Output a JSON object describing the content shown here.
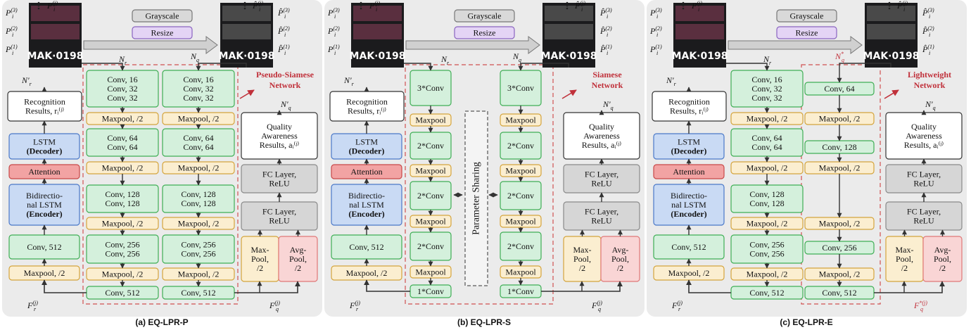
{
  "panels": [
    {
      "caption": "(a)  EQ-LPR-P",
      "plate": "MAK·0198",
      "network": [
        "Pseudo-Siamese",
        "Network"
      ],
      "labels": [
        {
          "base": "P",
          "sub": "i",
          "sup": "(3)"
        },
        {
          "base": "P",
          "sub": "i",
          "sup": "(2)"
        },
        {
          "base": "P",
          "sub": "i",
          "sup": "(1)"
        },
        {
          "base": "P",
          "sub": "i",
          "sup": "(j)"
        },
        {
          "base": "P̂",
          "sub": "i",
          "sup": "(j)"
        },
        {
          "base": "P̂",
          "sub": "i",
          "sup": "(3)"
        },
        {
          "base": "P̂",
          "sub": "i",
          "sup": "(2)"
        },
        {
          "base": "P̂",
          "sub": "i",
          "sup": "(1)"
        },
        {
          "base": "N",
          "sub": "r"
        },
        {
          "base": "N",
          "sub": "q"
        },
        {
          "base": "N′",
          "sub": "r"
        },
        {
          "base": "N′",
          "sub": "q"
        },
        {
          "base": "F",
          "sub": "r",
          "sup": "(j)"
        },
        {
          "base": "F",
          "sub": "q",
          "sup": "(j)"
        }
      ],
      "boxes": [
        [
          "Grayscale"
        ],
        [
          "Resize"
        ],
        [
          "Recognition",
          "Results, rᵢ⁽ʲ⁾"
        ],
        [
          "LSTM",
          "(Decoder)"
        ],
        [
          "Attention"
        ],
        [
          "Bidirectio-",
          "nal LSTM",
          "(Encoder)"
        ],
        [
          "Conv, 512"
        ],
        [
          "Maxpool, /2"
        ],
        [
          "Quality",
          "Awareness",
          "Results, aᵢ⁽ʲ⁾"
        ],
        [
          "FC Layer,",
          "ReLU"
        ],
        [
          "FC Layer,",
          "ReLU"
        ],
        [
          "Max-",
          "Pool,",
          "/2"
        ],
        [
          "Avg-",
          "Pool,",
          "/2"
        ]
      ],
      "columns": [
        [
          [
            "Conv, 16",
            "Conv, 32",
            "Conv, 32"
          ],
          [
            "Maxpool, /2"
          ],
          [
            "Conv, 64",
            "Conv, 64"
          ],
          [
            "Maxpool, /2"
          ],
          [
            "Conv, 128",
            "Conv, 128"
          ],
          [
            "Maxpool, /2"
          ],
          [
            "Conv, 256",
            "Conv, 256"
          ],
          [
            "Maxpool, /2"
          ],
          [
            "Conv, 512"
          ]
        ],
        [
          [
            "Conv, 16",
            "Conv, 32",
            "Conv, 32"
          ],
          [
            "Maxpool, /2"
          ],
          [
            "Conv, 64",
            "Conv, 64"
          ],
          [
            "Maxpool, /2"
          ],
          [
            "Conv, 128",
            "Conv, 128"
          ],
          [
            "Maxpool, /2"
          ],
          [
            "Conv, 256",
            "Conv, 256"
          ],
          [
            "Maxpool, /2"
          ],
          [
            "Conv, 512"
          ]
        ]
      ]
    },
    {
      "caption": "(b)  EQ-LPR-S",
      "plate": "MAK·0198",
      "network": [
        "Siamese",
        "Network"
      ],
      "sharing": "Parameter Sharing",
      "labels": [
        {
          "base": "P",
          "sub": "i",
          "sup": "(3)"
        },
        {
          "base": "P",
          "sub": "i",
          "sup": "(2)"
        },
        {
          "base": "P",
          "sub": "i",
          "sup": "(1)"
        },
        {
          "base": "P",
          "sub": "i",
          "sup": "(j)"
        },
        {
          "base": "P̂",
          "sub": "i",
          "sup": "(j)"
        },
        {
          "base": "P̂",
          "sub": "i",
          "sup": "(3)"
        },
        {
          "base": "P̂",
          "sub": "i",
          "sup": "(2)"
        },
        {
          "base": "P̂",
          "sub": "i",
          "sup": "(1)"
        },
        {
          "base": "N",
          "sub": "r"
        },
        {
          "base": "N",
          "sub": "q"
        },
        {
          "base": "N′",
          "sub": "r"
        },
        {
          "base": "N′",
          "sub": "q"
        },
        {
          "base": "F",
          "sub": "r",
          "sup": "(j)"
        },
        {
          "base": "F",
          "sub": "q",
          "sup": "(j)"
        }
      ],
      "boxes": [
        [
          "Grayscale"
        ],
        [
          "Resize"
        ],
        [
          "Recognition",
          "Results, rᵢ⁽ʲ⁾"
        ],
        [
          "LSTM",
          "(Decoder)"
        ],
        [
          "Attention"
        ],
        [
          "Bidirectio-",
          "nal LSTM",
          "(Encoder)"
        ],
        [
          "Conv, 512"
        ],
        [
          "Maxpool, /2"
        ],
        [
          "Quality",
          "Awareness",
          "Results, aᵢ⁽ʲ⁾"
        ],
        [
          "FC Layer,",
          "ReLU"
        ],
        [
          "FC Layer,",
          "ReLU"
        ],
        [
          "Max-",
          "Pool,",
          "/2"
        ],
        [
          "Avg-",
          "Pool,",
          "/2"
        ]
      ],
      "columns": [
        [
          [
            "3*Conv"
          ],
          [
            "Maxpool"
          ],
          [
            "2*Conv"
          ],
          [
            "Maxpool"
          ],
          [
            "2*Conv"
          ],
          [
            "Maxpool"
          ],
          [
            "2*Conv"
          ],
          [
            "Maxpool"
          ],
          [
            "1*Conv"
          ]
        ],
        [
          [
            "3*Conv"
          ],
          [
            "Maxpool"
          ],
          [
            "2*Conv"
          ],
          [
            "Maxpool"
          ],
          [
            "2*Conv"
          ],
          [
            "Maxpool"
          ],
          [
            "2*Conv"
          ],
          [
            "Maxpool"
          ],
          [
            "1*Conv"
          ]
        ]
      ]
    },
    {
      "caption": "(c)  EQ-LPR-E",
      "plate": "MAK·0198",
      "network": [
        "Lightweight",
        "Network"
      ],
      "labels": [
        {
          "base": "P",
          "sub": "i",
          "sup": "(3)"
        },
        {
          "base": "P",
          "sub": "i",
          "sup": "(2)"
        },
        {
          "base": "P",
          "sub": "i",
          "sup": "(1)"
        },
        {
          "base": "P",
          "sub": "i",
          "sup": "(j)"
        },
        {
          "base": "P̂",
          "sub": "i",
          "sup": "(j)"
        },
        {
          "base": "P̂",
          "sub": "i",
          "sup": "(3)"
        },
        {
          "base": "P̂",
          "sub": "i",
          "sup": "(2)"
        },
        {
          "base": "P̂",
          "sub": "i",
          "sup": "(1)"
        },
        {
          "base": "N",
          "sub": "r"
        },
        {
          "base": "N",
          "sub": "q",
          "sup": "*"
        },
        {
          "base": "N′",
          "sub": "r"
        },
        {
          "base": "N′",
          "sub": "q"
        },
        {
          "base": "F",
          "sub": "r",
          "sup": "(j)"
        },
        {
          "base": "F",
          "sub": "q",
          "sup": "*(j)"
        }
      ],
      "boxes": [
        [
          "Grayscale"
        ],
        [
          "Resize"
        ],
        [
          "Recognition",
          "Results, rᵢ⁽ʲ⁾"
        ],
        [
          "LSTM",
          "(Decoder)"
        ],
        [
          "Attention"
        ],
        [
          "Bidirectio-",
          "nal LSTM",
          "(Encoder)"
        ],
        [
          "Conv, 512"
        ],
        [
          "Maxpool, /2"
        ],
        [
          "Quality",
          "Awareness",
          "Results, aᵢ⁽ʲ⁾"
        ],
        [
          "FC Layer,",
          "ReLU"
        ],
        [
          "FC Layer,",
          "ReLU"
        ],
        [
          "Max-",
          "Pool,",
          "/2"
        ],
        [
          "Avg-",
          "Pool,",
          "/2"
        ]
      ],
      "columns": [
        [
          [
            "Conv, 16",
            "Conv, 32",
            "Conv, 32"
          ],
          [
            "Maxpool, /2"
          ],
          [
            "Conv, 64",
            "Conv, 64"
          ],
          [
            "Maxpool, /2"
          ],
          [
            "Conv, 128",
            "Conv, 128"
          ],
          [
            "Maxpool, /2"
          ],
          [
            "Conv, 256",
            "Conv, 256"
          ],
          [
            "Maxpool, /2"
          ],
          [
            "Conv, 512"
          ]
        ],
        [
          [
            "Conv, 64"
          ],
          [
            "Maxpool, /2"
          ],
          [
            "Conv, 128"
          ],
          [
            "Maxpool, /2"
          ],
          [
            "Maxpool, /2"
          ],
          [
            "Conv, 256"
          ],
          [
            "Maxpool, /2"
          ],
          [
            "Conv, 512"
          ]
        ]
      ]
    }
  ]
}
